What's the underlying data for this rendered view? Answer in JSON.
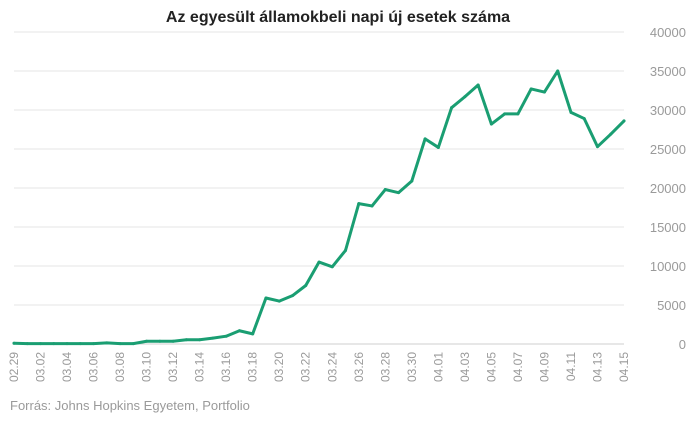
{
  "chart_data": {
    "type": "line",
    "title": "Az egyesült államokbeli napi új esetek száma",
    "source": "Forrás: Johns Hopkins Egyetem, Portfolio",
    "xlabel": "",
    "ylabel": "",
    "ylim": [
      0,
      40000
    ],
    "yticks": [
      0,
      5000,
      10000,
      15000,
      20000,
      25000,
      30000,
      35000,
      40000
    ],
    "grid": true,
    "x": [
      "02.29",
      "03.01",
      "03.02",
      "03.03",
      "03.04",
      "03.05",
      "03.06",
      "03.07",
      "03.08",
      "03.09",
      "03.10",
      "03.11",
      "03.12",
      "03.13",
      "03.14",
      "03.15",
      "03.16",
      "03.17",
      "03.18",
      "03.19",
      "03.20",
      "03.21",
      "03.22",
      "03.23",
      "03.24",
      "03.25",
      "03.26",
      "03.27",
      "03.28",
      "03.29",
      "03.30",
      "03.31",
      "04.01",
      "04.02",
      "04.03",
      "04.04",
      "04.05",
      "04.06",
      "04.07",
      "04.08",
      "04.09",
      "04.10",
      "04.11",
      "04.12",
      "04.13",
      "04.14",
      "04.15"
    ],
    "xtick_labels": [
      "02.29",
      "03.02",
      "03.04",
      "03.06",
      "03.08",
      "03.10",
      "03.12",
      "03.14",
      "03.16",
      "03.18",
      "03.20",
      "03.22",
      "03.24",
      "03.26",
      "03.28",
      "03.30",
      "04.01",
      "04.03",
      "04.05",
      "04.07",
      "04.09",
      "04.11",
      "04.13",
      "04.15"
    ],
    "series": [
      {
        "name": "",
        "color": "#1a9e72",
        "values": [
          100,
          50,
          50,
          50,
          50,
          50,
          50,
          150,
          50,
          50,
          350,
          350,
          350,
          550,
          550,
          750,
          1000,
          1700,
          1300,
          5900,
          5500,
          6200,
          7500,
          10500,
          9900,
          12000,
          18000,
          17700,
          19800,
          19400,
          20900,
          26300,
          25200,
          30300,
          31700,
          33200,
          28200,
          29500,
          29500,
          32700,
          32300,
          35000,
          29700,
          28900,
          25300,
          26900,
          28600
        ]
      }
    ]
  }
}
